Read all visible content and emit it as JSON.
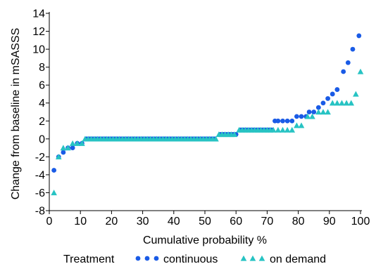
{
  "chart_data": {
    "type": "scatter",
    "title": "",
    "xlabel": "Cumulative probability %",
    "ylabel": "Change from baseline in mSASSS",
    "xlim": [
      0,
      100
    ],
    "ylim": [
      -8,
      14
    ],
    "x_ticks": [
      "0",
      "10",
      "20",
      "30",
      "40",
      "50",
      "60",
      "70",
      "80",
      "90",
      "100"
    ],
    "y_ticks": [
      "-8",
      "-6",
      "-4",
      "-2",
      "0",
      "2",
      "4",
      "6",
      "8",
      "10",
      "12",
      "14"
    ],
    "grid": false,
    "legend": {
      "title": "Treatment",
      "placement": "bottom"
    },
    "series": [
      {
        "name": "continuous",
        "marker": "circle",
        "color": "#1a5be6",
        "points": [
          [
            1.5,
            -3.5
          ],
          [
            3.0,
            -2.0
          ],
          [
            4.5,
            -1.5
          ],
          [
            6.0,
            -1.0
          ],
          [
            7.5,
            -1.0
          ],
          [
            9.0,
            -0.5
          ],
          [
            10.5,
            -0.5
          ],
          [
            12.0,
            0
          ],
          [
            13.0,
            0
          ],
          [
            14.0,
            0
          ],
          [
            15.0,
            0
          ],
          [
            16.0,
            0
          ],
          [
            17.0,
            0
          ],
          [
            18.0,
            0
          ],
          [
            19.0,
            0
          ],
          [
            20.0,
            0
          ],
          [
            21.0,
            0
          ],
          [
            22.0,
            0
          ],
          [
            23.0,
            0
          ],
          [
            24.0,
            0
          ],
          [
            25.0,
            0
          ],
          [
            26.0,
            0
          ],
          [
            27.0,
            0
          ],
          [
            28.0,
            0
          ],
          [
            29.0,
            0
          ],
          [
            30.0,
            0
          ],
          [
            31.0,
            0
          ],
          [
            32.0,
            0
          ],
          [
            33.0,
            0
          ],
          [
            34.0,
            0
          ],
          [
            35.0,
            0
          ],
          [
            36.0,
            0
          ],
          [
            37.0,
            0
          ],
          [
            38.0,
            0
          ],
          [
            39.0,
            0
          ],
          [
            40.0,
            0
          ],
          [
            41.0,
            0
          ],
          [
            42.0,
            0
          ],
          [
            43.0,
            0
          ],
          [
            44.0,
            0
          ],
          [
            45.0,
            0
          ],
          [
            46.0,
            0
          ],
          [
            47.0,
            0
          ],
          [
            48.0,
            0
          ],
          [
            49.0,
            0
          ],
          [
            50.0,
            0
          ],
          [
            51.0,
            0
          ],
          [
            52.0,
            0
          ],
          [
            53.0,
            0
          ],
          [
            55.0,
            0.5
          ],
          [
            56.0,
            0.5
          ],
          [
            57.0,
            0.5
          ],
          [
            58.0,
            0.5
          ],
          [
            59.0,
            0.5
          ],
          [
            60.0,
            0.5
          ],
          [
            61.5,
            1.0
          ],
          [
            62.5,
            1.0
          ],
          [
            63.5,
            1.0
          ],
          [
            64.5,
            1.0
          ],
          [
            65.5,
            1.0
          ],
          [
            66.5,
            1.0
          ],
          [
            67.5,
            1.0
          ],
          [
            68.5,
            1.0
          ],
          [
            69.5,
            1.0
          ],
          [
            70.5,
            1.0
          ],
          [
            71.5,
            1.0
          ],
          [
            72.5,
            2.0
          ],
          [
            73.5,
            2.0
          ],
          [
            75.0,
            2.0
          ],
          [
            76.5,
            2.0
          ],
          [
            78.0,
            2.0
          ],
          [
            79.5,
            2.5
          ],
          [
            81.0,
            2.5
          ],
          [
            82.5,
            2.5
          ],
          [
            83.5,
            3.0
          ],
          [
            85.0,
            3.0
          ],
          [
            86.5,
            3.5
          ],
          [
            88.0,
            4.0
          ],
          [
            89.5,
            4.5
          ],
          [
            91.0,
            5.0
          ],
          [
            92.5,
            5.5
          ],
          [
            94.5,
            7.5
          ],
          [
            96.0,
            8.5
          ],
          [
            97.5,
            10.0
          ],
          [
            99.5,
            11.5
          ]
        ]
      },
      {
        "name": "on demand",
        "marker": "triangle",
        "color": "#27c3c3",
        "points": [
          [
            1.5,
            -6.0
          ],
          [
            3.0,
            -2.0
          ],
          [
            4.5,
            -1.0
          ],
          [
            6.0,
            -1.0
          ],
          [
            7.5,
            -0.5
          ],
          [
            9.0,
            -0.5
          ],
          [
            10.5,
            -0.5
          ],
          [
            11.5,
            0
          ],
          [
            12.5,
            0
          ],
          [
            13.5,
            0
          ],
          [
            14.5,
            0
          ],
          [
            15.5,
            0
          ],
          [
            16.5,
            0
          ],
          [
            17.5,
            0
          ],
          [
            18.5,
            0
          ],
          [
            19.5,
            0
          ],
          [
            20.5,
            0
          ],
          [
            21.5,
            0
          ],
          [
            22.5,
            0
          ],
          [
            23.5,
            0
          ],
          [
            24.5,
            0
          ],
          [
            25.5,
            0
          ],
          [
            26.5,
            0
          ],
          [
            27.5,
            0
          ],
          [
            28.5,
            0
          ],
          [
            29.5,
            0
          ],
          [
            30.5,
            0
          ],
          [
            31.5,
            0
          ],
          [
            32.5,
            0
          ],
          [
            33.5,
            0
          ],
          [
            34.5,
            0
          ],
          [
            35.5,
            0
          ],
          [
            36.5,
            0
          ],
          [
            37.5,
            0
          ],
          [
            38.5,
            0
          ],
          [
            39.5,
            0
          ],
          [
            40.5,
            0
          ],
          [
            41.5,
            0
          ],
          [
            42.5,
            0
          ],
          [
            43.5,
            0
          ],
          [
            44.5,
            0
          ],
          [
            45.5,
            0
          ],
          [
            46.5,
            0
          ],
          [
            47.5,
            0
          ],
          [
            48.5,
            0
          ],
          [
            49.5,
            0
          ],
          [
            50.5,
            0
          ],
          [
            51.5,
            0
          ],
          [
            52.5,
            0
          ],
          [
            53.5,
            0
          ],
          [
            54.5,
            0.5
          ],
          [
            55.5,
            0.5
          ],
          [
            56.5,
            0.5
          ],
          [
            57.5,
            0.5
          ],
          [
            58.5,
            0.5
          ],
          [
            59.5,
            0.5
          ],
          [
            61.0,
            1.0
          ],
          [
            62.0,
            1.0
          ],
          [
            63.0,
            1.0
          ],
          [
            64.0,
            1.0
          ],
          [
            65.0,
            1.0
          ],
          [
            66.0,
            1.0
          ],
          [
            67.0,
            1.0
          ],
          [
            68.0,
            1.0
          ],
          [
            69.0,
            1.0
          ],
          [
            70.0,
            1.0
          ],
          [
            71.0,
            1.0
          ],
          [
            72.0,
            1.0
          ],
          [
            73.5,
            1.0
          ],
          [
            75.0,
            1.0
          ],
          [
            76.5,
            1.0
          ],
          [
            78.0,
            1.0
          ],
          [
            79.5,
            1.5
          ],
          [
            81.0,
            1.5
          ],
          [
            83.0,
            2.5
          ],
          [
            84.5,
            2.5
          ],
          [
            86.5,
            3.0
          ],
          [
            88.0,
            3.0
          ],
          [
            89.5,
            3.0
          ],
          [
            91.0,
            4.0
          ],
          [
            92.5,
            4.0
          ],
          [
            94.0,
            4.0
          ],
          [
            95.5,
            4.0
          ],
          [
            97.0,
            4.0
          ],
          [
            98.5,
            5.0
          ],
          [
            100.0,
            7.5
          ]
        ]
      }
    ]
  }
}
